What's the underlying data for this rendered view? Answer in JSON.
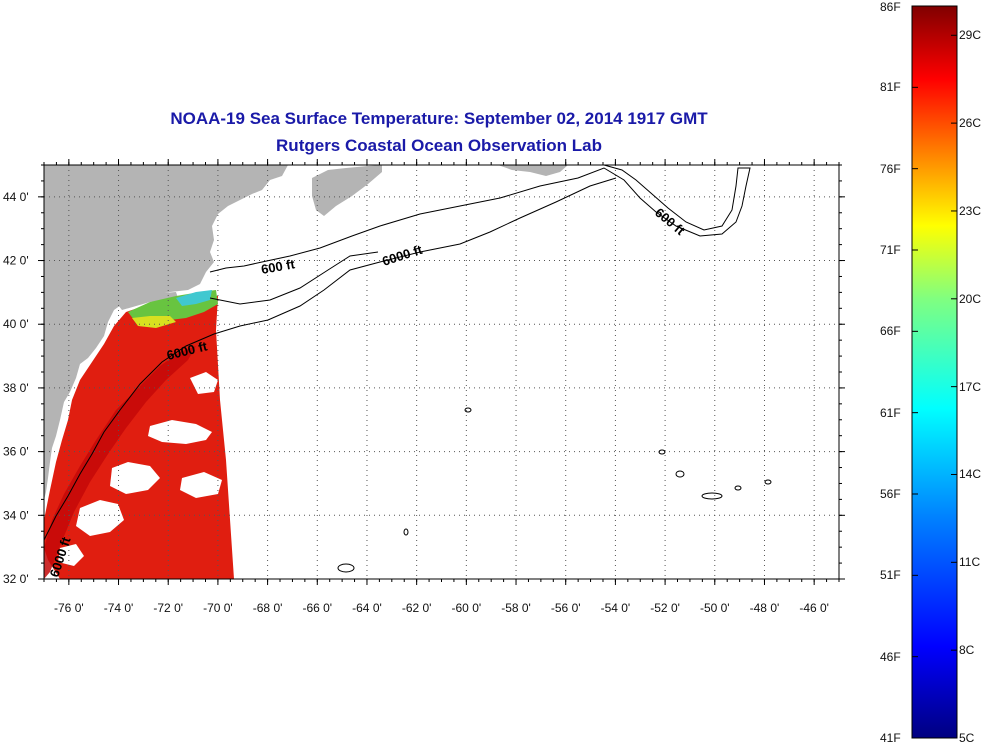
{
  "title": {
    "line1": "NOAA-19 Sea Surface Temperature:  September 02, 2014 1917 GMT",
    "line2": "Rutgers Coastal Ocean Observation Lab"
  },
  "map": {
    "lon_range": [
      -77,
      -45
    ],
    "lat_range": [
      32,
      45
    ],
    "lon_ticks": [
      {
        "value": -76,
        "label": "-76 0'"
      },
      {
        "value": -74,
        "label": "-74 0'"
      },
      {
        "value": -72,
        "label": "-72 0'"
      },
      {
        "value": -70,
        "label": "-70 0'"
      },
      {
        "value": -68,
        "label": "-68 0'"
      },
      {
        "value": -66,
        "label": "-66 0'"
      },
      {
        "value": -64,
        "label": "-64 0'"
      },
      {
        "value": -62,
        "label": "-62 0'"
      },
      {
        "value": -60,
        "label": "-60 0'"
      },
      {
        "value": -58,
        "label": "-58 0'"
      },
      {
        "value": -56,
        "label": "-56 0'"
      },
      {
        "value": -54,
        "label": "-54 0'"
      },
      {
        "value": -52,
        "label": "-52 0'"
      },
      {
        "value": -50,
        "label": "-50 0'"
      },
      {
        "value": -48,
        "label": "-48 0'"
      },
      {
        "value": -46,
        "label": "-46 0'"
      }
    ],
    "lat_ticks": [
      {
        "value": 44,
        "label": "44 0'"
      },
      {
        "value": 42,
        "label": "42 0'"
      },
      {
        "value": 40,
        "label": "40 0'"
      },
      {
        "value": 38,
        "label": "38 0'"
      },
      {
        "value": 36,
        "label": "36 0'"
      },
      {
        "value": 34,
        "label": "34 0'"
      },
      {
        "value": 32,
        "label": "32 0'"
      }
    ],
    "contour_labels": {
      "shelf_600_a": "600 ft",
      "shelf_6000_a": "6000 ft",
      "shelf_6000_b": "6000 ft",
      "shelf_600_b": "600 ft",
      "shelf_6000_c": "6000 ft"
    },
    "colors": {
      "land": "#b4b4b4",
      "grid": "#555555",
      "sst_warm": "#e02010",
      "sst_hot": "#c00000",
      "sst_cool_green": "#60c040",
      "sst_cool_cyan": "#40c8d0",
      "cloud": "#ffffff"
    }
  },
  "colorbar": {
    "f_labels": [
      "86F",
      "81F",
      "76F",
      "71F",
      "66F",
      "61F",
      "56F",
      "51F",
      "46F",
      "41F"
    ],
    "c_labels": [
      "29C",
      "26C",
      "23C",
      "20C",
      "17C",
      "14C",
      "11C",
      "8C",
      "5C"
    ],
    "f_range": [
      41,
      86
    ],
    "c_range": [
      5,
      30
    ],
    "colors": [
      "#000080",
      "#0000ff",
      "#0080ff",
      "#00ffff",
      "#80ff80",
      "#ffff00",
      "#ff8000",
      "#ff0000",
      "#800000"
    ]
  }
}
